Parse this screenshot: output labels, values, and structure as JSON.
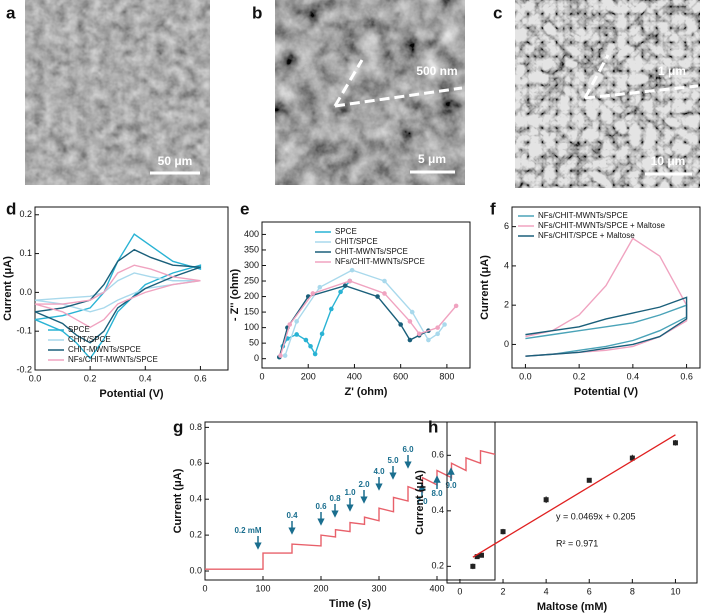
{
  "images": [
    {
      "label": "a",
      "scale_bars": [
        "50 μm"
      ]
    },
    {
      "label": "b",
      "scale_bars": [
        "500 nm",
        "5 μm"
      ]
    },
    {
      "label": "c",
      "scale_bars": [
        "1 μm",
        "10 μm"
      ]
    }
  ],
  "chart_data": [
    {
      "type": "line",
      "panel": "d",
      "xlabel": "Potential (V)",
      "ylabel": "Current (μA)",
      "xlim": [
        0,
        0.7
      ],
      "xticks": [
        {
          "value": 0,
          "label": "0.0"
        },
        0.2,
        0.4,
        0.6
      ],
      "ylim": [
        -0.2,
        0.22
      ],
      "yticks": [
        -0.2,
        -0.1,
        {
          "value": 0,
          "label": "0.0"
        },
        0.1,
        0.2
      ],
      "legend": "lower right",
      "x": [
        0,
        0.1,
        0.2,
        0.25,
        0.3,
        0.36,
        0.42,
        0.5,
        0.6,
        0.6,
        0.5,
        0.4,
        0.3,
        0.25,
        0.2,
        0.15,
        0.1,
        0
      ],
      "series": [
        {
          "name": "SPCE",
          "color": "#29b3d4",
          "values": [
            -0.07,
            -0.06,
            -0.04,
            0.0,
            0.08,
            0.15,
            0.12,
            0.08,
            0.06,
            0.07,
            0.05,
            0.02,
            -0.05,
            -0.12,
            -0.17,
            -0.13,
            -0.1,
            -0.07
          ]
        },
        {
          "name": "CHIT/SPCE",
          "color": "#a9d9ec",
          "values": [
            -0.02,
            -0.015,
            -0.01,
            0.0,
            0.03,
            0.05,
            0.04,
            0.03,
            0.03,
            0.03,
            0.02,
            0.01,
            -0.02,
            -0.04,
            -0.05,
            -0.04,
            -0.03,
            -0.02
          ]
        },
        {
          "name": "CHIT-MWNTs/SPCE",
          "color": "#1a5f7a",
          "values": [
            -0.05,
            -0.04,
            -0.02,
            0.02,
            0.08,
            0.11,
            0.09,
            0.07,
            0.065,
            0.065,
            0.04,
            0.01,
            -0.04,
            -0.1,
            -0.13,
            -0.11,
            -0.08,
            -0.05
          ]
        },
        {
          "name": "NFs/CHIT-MWNTs/SPCE",
          "color": "#f0a3c0",
          "values": [
            -0.03,
            -0.03,
            -0.02,
            0.0,
            0.05,
            0.07,
            0.06,
            0.04,
            0.03,
            0.03,
            0.02,
            0.0,
            -0.03,
            -0.07,
            -0.09,
            -0.07,
            -0.05,
            -0.03
          ]
        }
      ]
    },
    {
      "type": "scatter",
      "panel": "e",
      "xlabel": "Z' (ohm)",
      "ylabel": "- Z'' (ohm)",
      "xlim": [
        0,
        900
      ],
      "xticks": [
        0,
        200,
        400,
        600,
        800
      ],
      "ylim": [
        -30,
        440
      ],
      "yticks": [
        0,
        50,
        100,
        150,
        200,
        250,
        300,
        350,
        400
      ],
      "legend": "upper right",
      "connect": true,
      "series": [
        {
          "name": "SPCE",
          "color": "#29b3d4",
          "x": [
            75,
            90,
            110,
            150,
            190,
            210,
            230,
            260,
            300,
            340,
            380
          ],
          "values": [
            5,
            40,
            65,
            78,
            60,
            40,
            15,
            80,
            160,
            215,
            250
          ]
        },
        {
          "name": "CHIT/SPCE",
          "color": "#a9d9ec",
          "x": [
            100,
            150,
            250,
            390,
            530,
            650,
            720,
            760,
            790
          ],
          "values": [
            10,
            120,
            230,
            285,
            250,
            150,
            60,
            80,
            110
          ]
        },
        {
          "name": "CHIT-MWNTs/SPCE",
          "color": "#1a5f7a",
          "x": [
            75,
            110,
            200,
            360,
            500,
            600,
            640,
            680,
            720
          ],
          "values": [
            5,
            100,
            200,
            235,
            200,
            110,
            60,
            75,
            90
          ]
        },
        {
          "name": "NFs/CHIT-MWNTs/SPCE",
          "color": "#f0a3c0",
          "x": [
            80,
            120,
            220,
            380,
            530,
            640,
            680,
            760,
            840
          ],
          "values": [
            10,
            110,
            210,
            250,
            210,
            120,
            80,
            100,
            170
          ]
        }
      ]
    },
    {
      "type": "line",
      "panel": "f",
      "xlabel": "Potential (V)",
      "ylabel": "Current (μA)",
      "xlim": [
        -0.05,
        0.65
      ],
      "xticks": [
        {
          "value": 0,
          "label": "0.0"
        },
        0.2,
        0.4,
        0.6
      ],
      "ylim": [
        -1.2,
        7
      ],
      "yticks": [
        0,
        2,
        4,
        6
      ],
      "legend": "upper left",
      "x": [
        0,
        0.1,
        0.2,
        0.3,
        0.4,
        0.5,
        0.6,
        0.6,
        0.5,
        0.4,
        0.3,
        0.2,
        0.1,
        0
      ],
      "series": [
        {
          "name": "NFs/CHIT-MWNTs/SPCE",
          "color": "#4aa3b8",
          "values": [
            0.3,
            0.5,
            0.7,
            0.9,
            1.1,
            1.5,
            2.0,
            1.4,
            0.7,
            0.2,
            -0.1,
            -0.3,
            -0.5,
            -0.6
          ]
        },
        {
          "name": "NFs/CHIT-MWNTs/SPCE + Maltose",
          "color": "#f0a3c0",
          "values": [
            0.4,
            0.7,
            1.5,
            3.0,
            5.4,
            4.5,
            2.0,
            1.2,
            0.4,
            -0.1,
            -0.3,
            -0.4,
            -0.5,
            -0.6
          ]
        },
        {
          "name": "NFs/CHIT/SPCE + Maltose",
          "color": "#1a5f7a",
          "values": [
            0.5,
            0.7,
            0.9,
            1.3,
            1.6,
            1.9,
            2.4,
            1.3,
            0.4,
            0.0,
            -0.2,
            -0.4,
            -0.5,
            -0.6
          ]
        }
      ]
    },
    {
      "type": "line",
      "panel": "g",
      "xlabel": "Time (s)",
      "ylabel": "Current (μA)",
      "xlim": [
        0,
        500
      ],
      "xticks": [
        0,
        100,
        200,
        300,
        400
      ],
      "ylim": [
        -0.05,
        0.83
      ],
      "yticks": [
        {
          "value": 0,
          "label": "0.0"
        },
        0.2,
        0.4,
        0.6,
        0.8
      ],
      "x": [
        0,
        100,
        100,
        150,
        150,
        200,
        200,
        225,
        225,
        250,
        250,
        275,
        275,
        300,
        300,
        325,
        325,
        350,
        350,
        375,
        375,
        400,
        400,
        425,
        425,
        450,
        450,
        475,
        475,
        500
      ],
      "series": [
        {
          "color": "#e8606a",
          "values": [
            0.01,
            0.01,
            0.1,
            0.1,
            0.15,
            0.14,
            0.2,
            0.19,
            0.23,
            0.22,
            0.27,
            0.26,
            0.3,
            0.28,
            0.35,
            0.33,
            0.41,
            0.39,
            0.47,
            0.44,
            0.52,
            0.48,
            0.56,
            0.52,
            0.6,
            0.56,
            0.63,
            0.6,
            0.67,
            0.65
          ]
        }
      ],
      "annotations": [
        "0.2 mM",
        "0.4",
        "0.6",
        "0.8",
        "1.0",
        "2.0",
        "4.0",
        "5.0",
        "6.0",
        "7.0",
        "8.0",
        "9.0"
      ]
    },
    {
      "type": "scatter",
      "panel": "h",
      "xlabel": "Maltose (mM)",
      "ylabel": "Current (μA)",
      "xlim": [
        -0.6,
        11
      ],
      "xticks": [
        0,
        2,
        4,
        6,
        8,
        10
      ],
      "ylim": [
        0.14,
        0.72
      ],
      "yticks": [
        0.2,
        0.4,
        0.6
      ],
      "series": [
        {
          "color": "#222222",
          "x": [
            0.6,
            0.8,
            1,
            2,
            4,
            6,
            8,
            10
          ],
          "values": [
            0.2,
            0.235,
            0.24,
            0.325,
            0.44,
            0.51,
            0.59,
            0.645
          ],
          "errors": [
            0.01,
            0.008,
            0.008,
            0.01,
            0.012,
            0.008,
            0.012,
            0.01
          ]
        }
      ],
      "fit": {
        "slope": 0.0469,
        "intercept": 0.205,
        "color": "#e02020"
      },
      "annotations": [
        "y = 0.0469x + 0.205",
        "R² = 0.971"
      ]
    }
  ]
}
